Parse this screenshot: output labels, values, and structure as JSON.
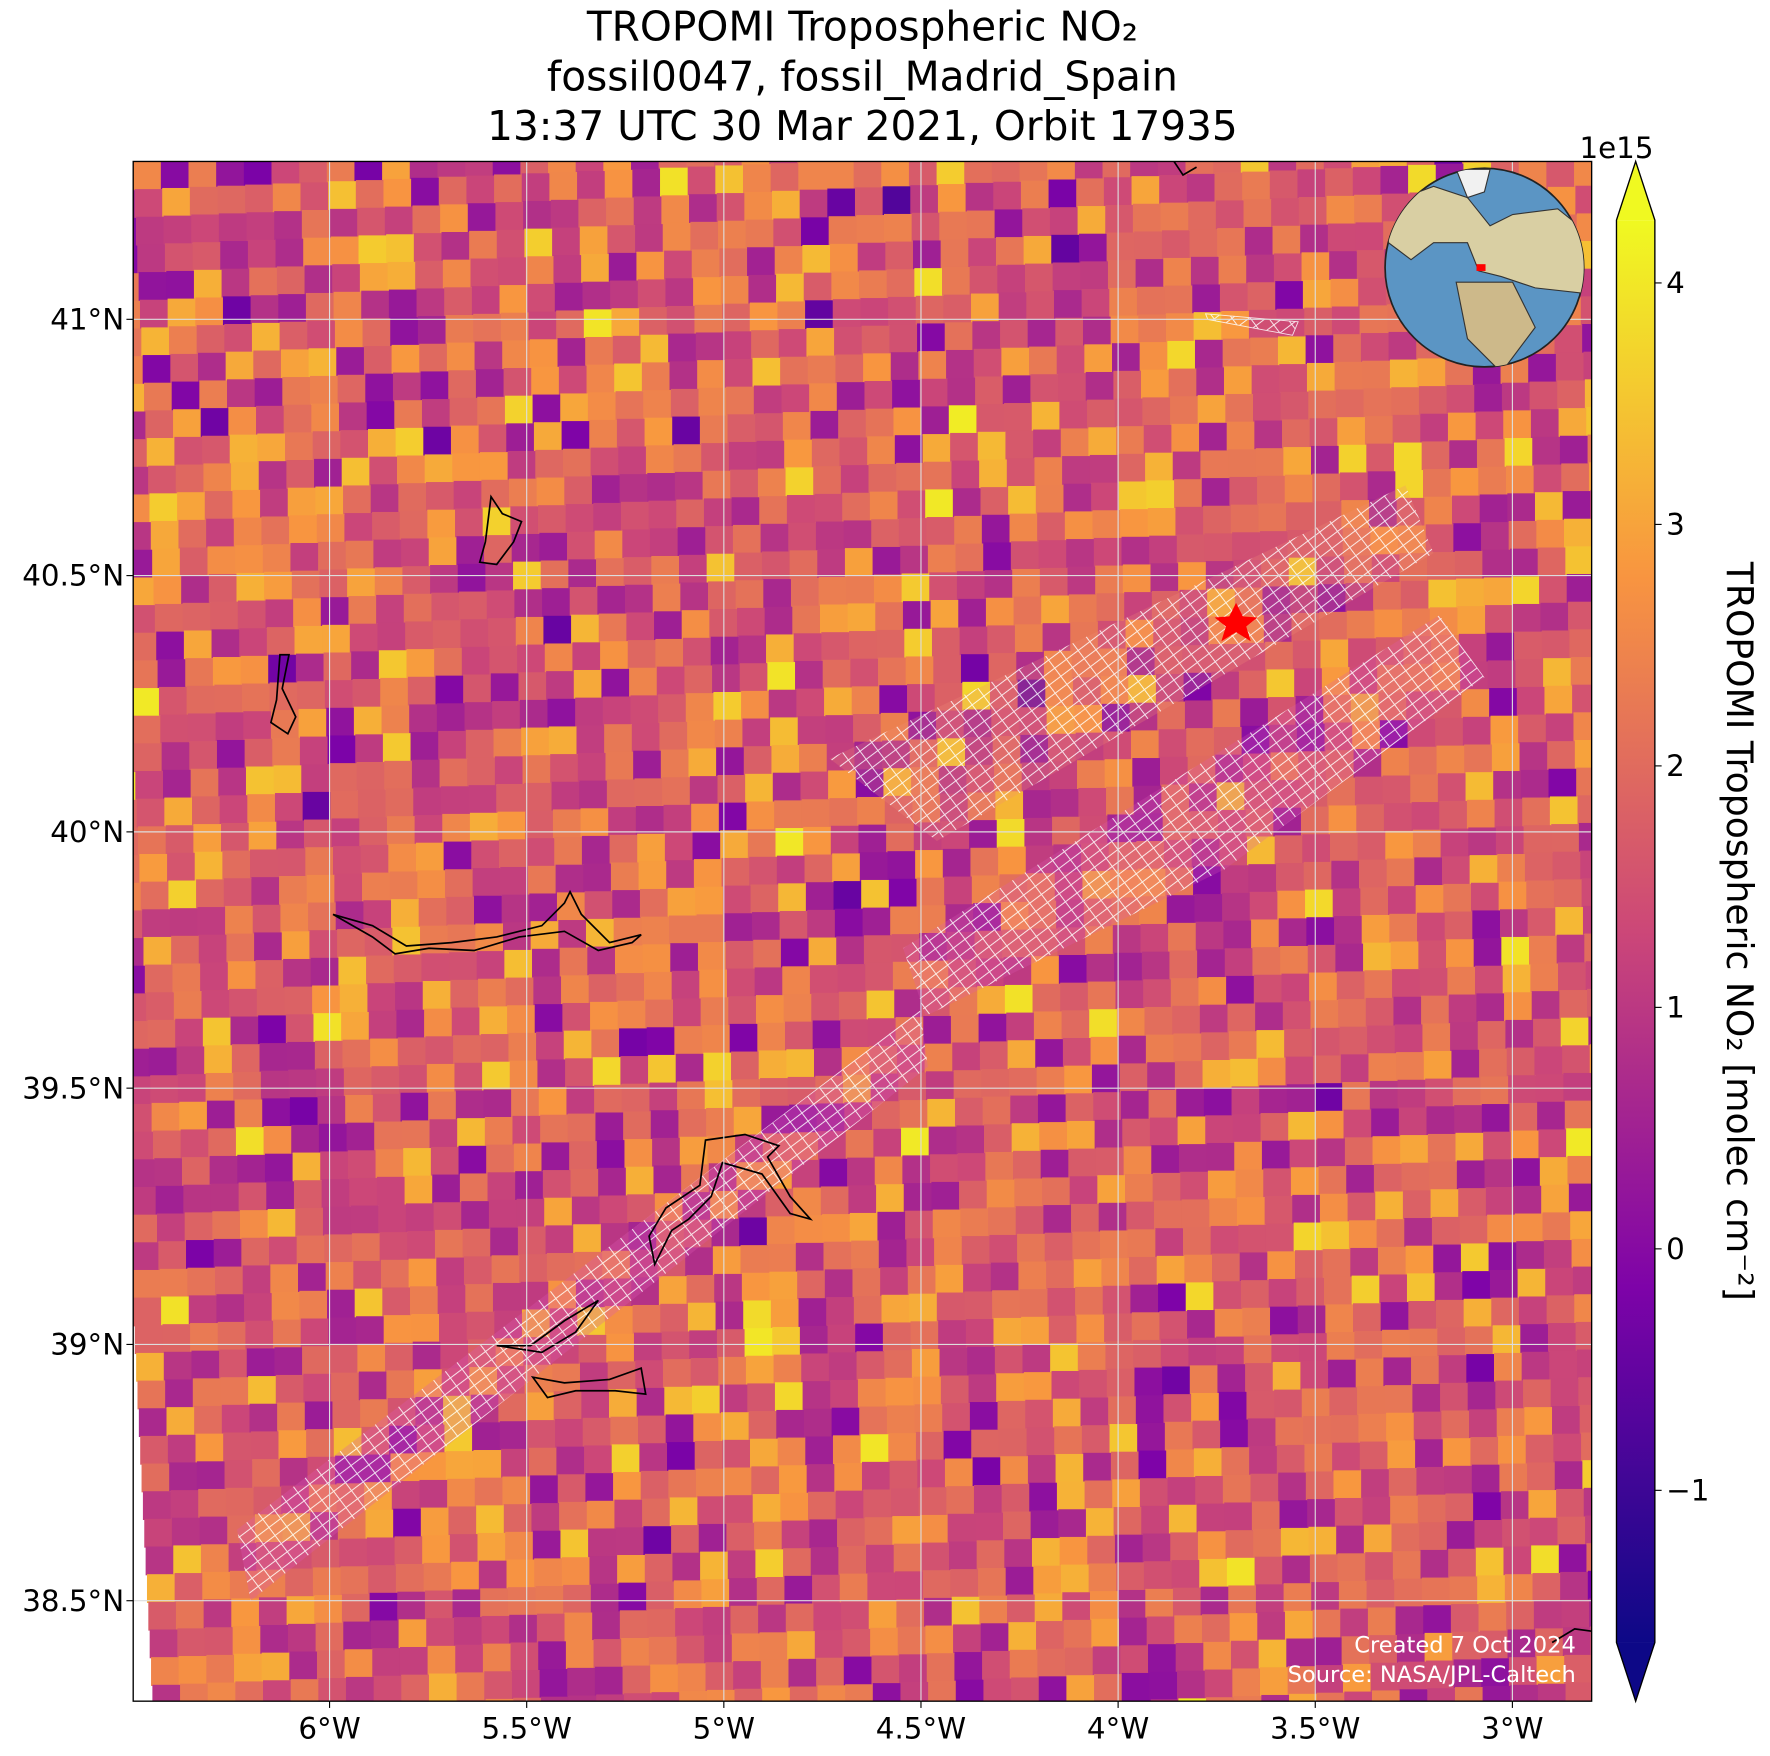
{
  "header": {
    "title_lines": [
      "TROPOMI Tropospheric NO₂",
      "fossil0047, fossil_Madrid_Spain",
      "13:37 UTC 30 Mar 2021, Orbit 17935"
    ]
  },
  "map": {
    "lon_range": [
      -6.498,
      -2.799
    ],
    "lat_range": [
      38.304,
      41.308
    ],
    "grid": true,
    "colormap": "plasma",
    "lon_ticks": [
      {
        "value": -6,
        "label": "6°W"
      },
      {
        "value": -5.5,
        "label": "5.5°W"
      },
      {
        "value": -5,
        "label": "5°W"
      },
      {
        "value": -4.5,
        "label": "4.5°W"
      },
      {
        "value": -4,
        "label": "4°W"
      },
      {
        "value": -3.5,
        "label": "3.5°W"
      },
      {
        "value": -3,
        "label": "3°W"
      }
    ],
    "lat_ticks": [
      {
        "value": 38.5,
        "label": "38.5°N"
      },
      {
        "value": 39,
        "label": "39°N"
      },
      {
        "value": 39.5,
        "label": "39.5°N"
      },
      {
        "value": 40,
        "label": "40°N"
      },
      {
        "value": 40.5,
        "label": "40.5°N"
      },
      {
        "value": 41,
        "label": "41°N"
      }
    ]
  },
  "colorbar": {
    "label": "TROPOMI Tropospheric NO₂ [molec cm⁻²]",
    "offset_label": "1e15",
    "range": [
      -1.63,
      4.26
    ],
    "ticks": [
      {
        "value": -1,
        "label": "−1"
      },
      0,
      1,
      2,
      3,
      4
    ]
  },
  "footer": {
    "lines": [
      "Created 7 Oct 2024",
      "Source: NASA/JPL-Caltech"
    ]
  }
}
